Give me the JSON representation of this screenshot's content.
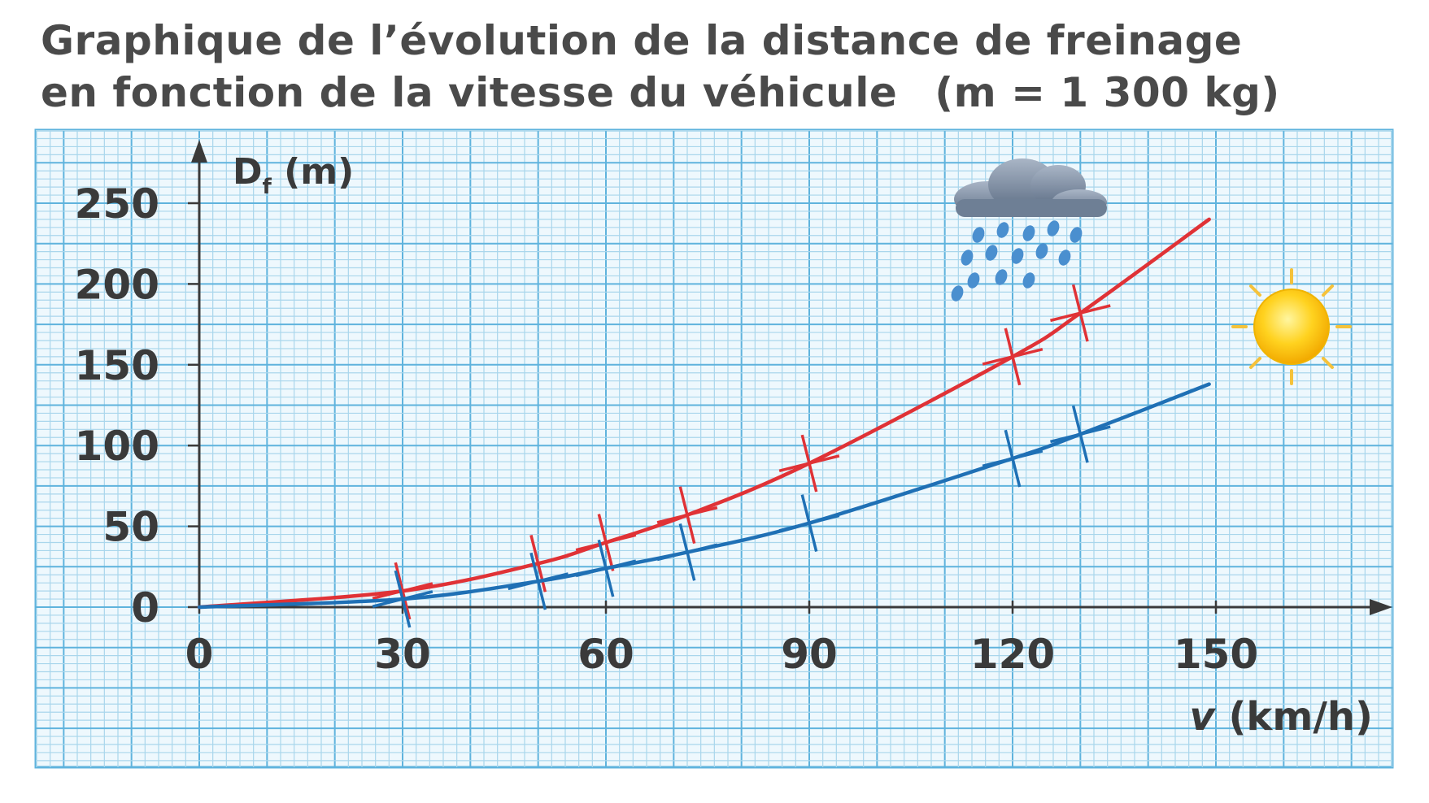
{
  "title": {
    "line1": "Graphique de l’évolution de la distance de freinage",
    "line2_text": "en fonction de la vitesse du véhicule",
    "line2_mass": "(m = 1 300 kg)"
  },
  "chart_data": {
    "type": "line",
    "title": "Graphique de l’évolution de la distance de freinage en fonction de la vitesse du véhicule (m = 1 300 kg)",
    "xlabel": "v (km/h)",
    "ylabel": "Df (m)",
    "xlim": [
      0,
      175
    ],
    "ylim": [
      0,
      275
    ],
    "x_ticks": [
      0,
      30,
      60,
      90,
      120,
      150
    ],
    "y_ticks": [
      0,
      50,
      100,
      150,
      200,
      250
    ],
    "grid": true,
    "colors": {
      "grid_minor": "#a9d6ec",
      "grid_major": "#5fb3dd",
      "rain": "#e03236",
      "dry": "#1f70b5",
      "axis": "#3a3a3a"
    },
    "series": [
      {
        "key": "rain",
        "icon": "rain-cloud-icon",
        "marker": "+",
        "points": [
          [
            0,
            0
          ],
          [
            30,
            10
          ],
          [
            50,
            27
          ],
          [
            60,
            40
          ],
          [
            72,
            57
          ],
          [
            90,
            89
          ],
          [
            120,
            155
          ],
          [
            130,
            182
          ]
        ],
        "curve_end": [
          149,
          240
        ]
      },
      {
        "key": "dry",
        "icon": "sun-icon",
        "marker": "+",
        "points": [
          [
            0,
            0
          ],
          [
            30,
            5
          ],
          [
            50,
            16
          ],
          [
            60,
            24
          ],
          [
            72,
            34
          ],
          [
            90,
            52
          ],
          [
            120,
            92
          ],
          [
            130,
            107
          ]
        ],
        "curve_end": [
          149,
          138
        ]
      }
    ]
  }
}
